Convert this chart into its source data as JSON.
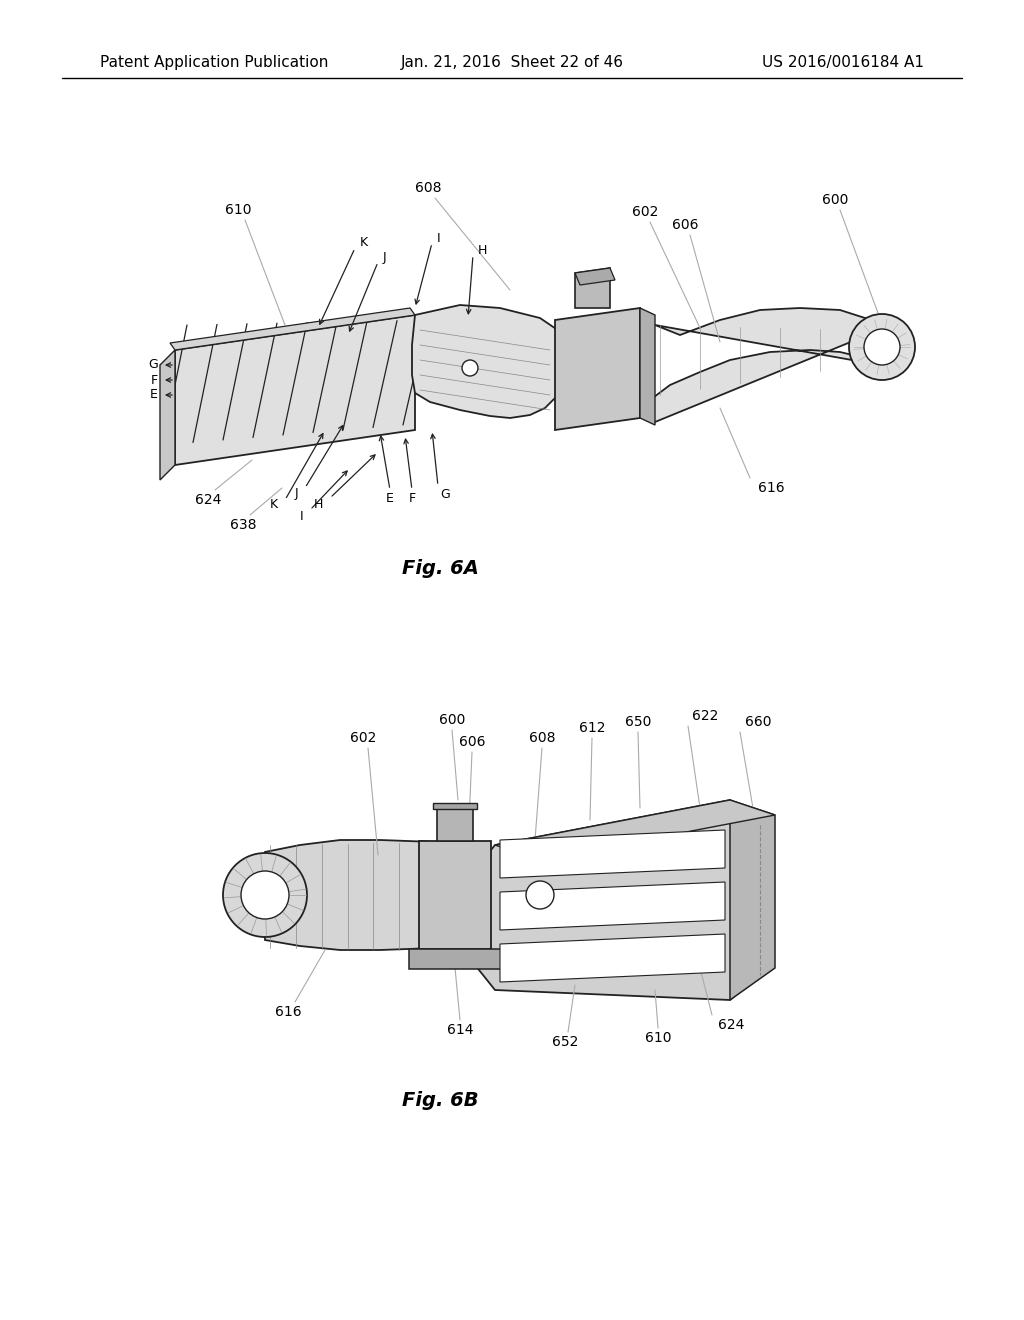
{
  "background_color": "#ffffff",
  "header_left": "Patent Application Publication",
  "header_center": "Jan. 21, 2016  Sheet 22 of 46",
  "header_right": "US 2016/0016184 A1",
  "fig6a_caption": "Fig. 6A",
  "fig6b_caption": "Fig. 6B",
  "label_fontsize": 10,
  "caption_fontsize": 14,
  "header_fontsize": 11,
  "line_color": "#222222",
  "callout_color": "#aaaaaa",
  "fill_light": "#e0e0e0",
  "fill_mid": "#c8c8c8",
  "fill_dark": "#aaaaaa"
}
